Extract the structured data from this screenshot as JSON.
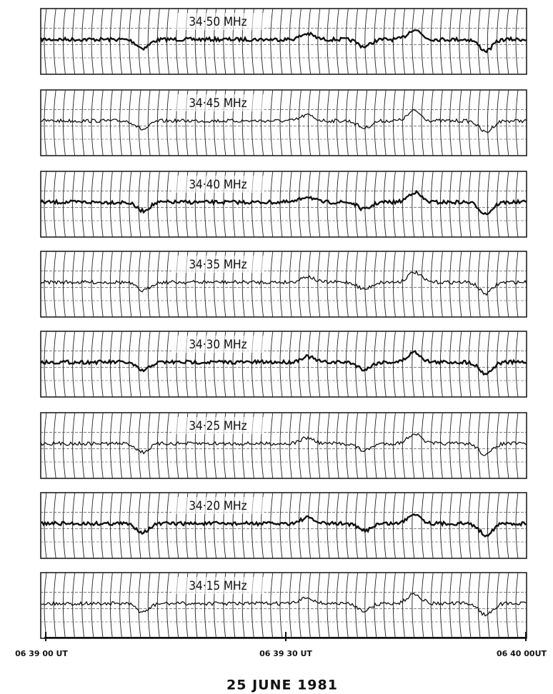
{
  "panels": [
    {
      "label": "34·50 MHz"
    },
    {
      "label": "34·45 MHz"
    },
    {
      "label": "34·40 MHz"
    },
    {
      "label": "34·35 MHz"
    },
    {
      "label": "34·30 MHz"
    },
    {
      "label": "34·25 MHz"
    },
    {
      "label": "34·20 MHz"
    },
    {
      "label": "34·15 MHz"
    }
  ],
  "time_axis": {
    "labels": [
      "06 39 00 UT",
      "06 39 30 UT",
      "06 40 00UT"
    ]
  },
  "date": "25  JUNE  1981"
}
